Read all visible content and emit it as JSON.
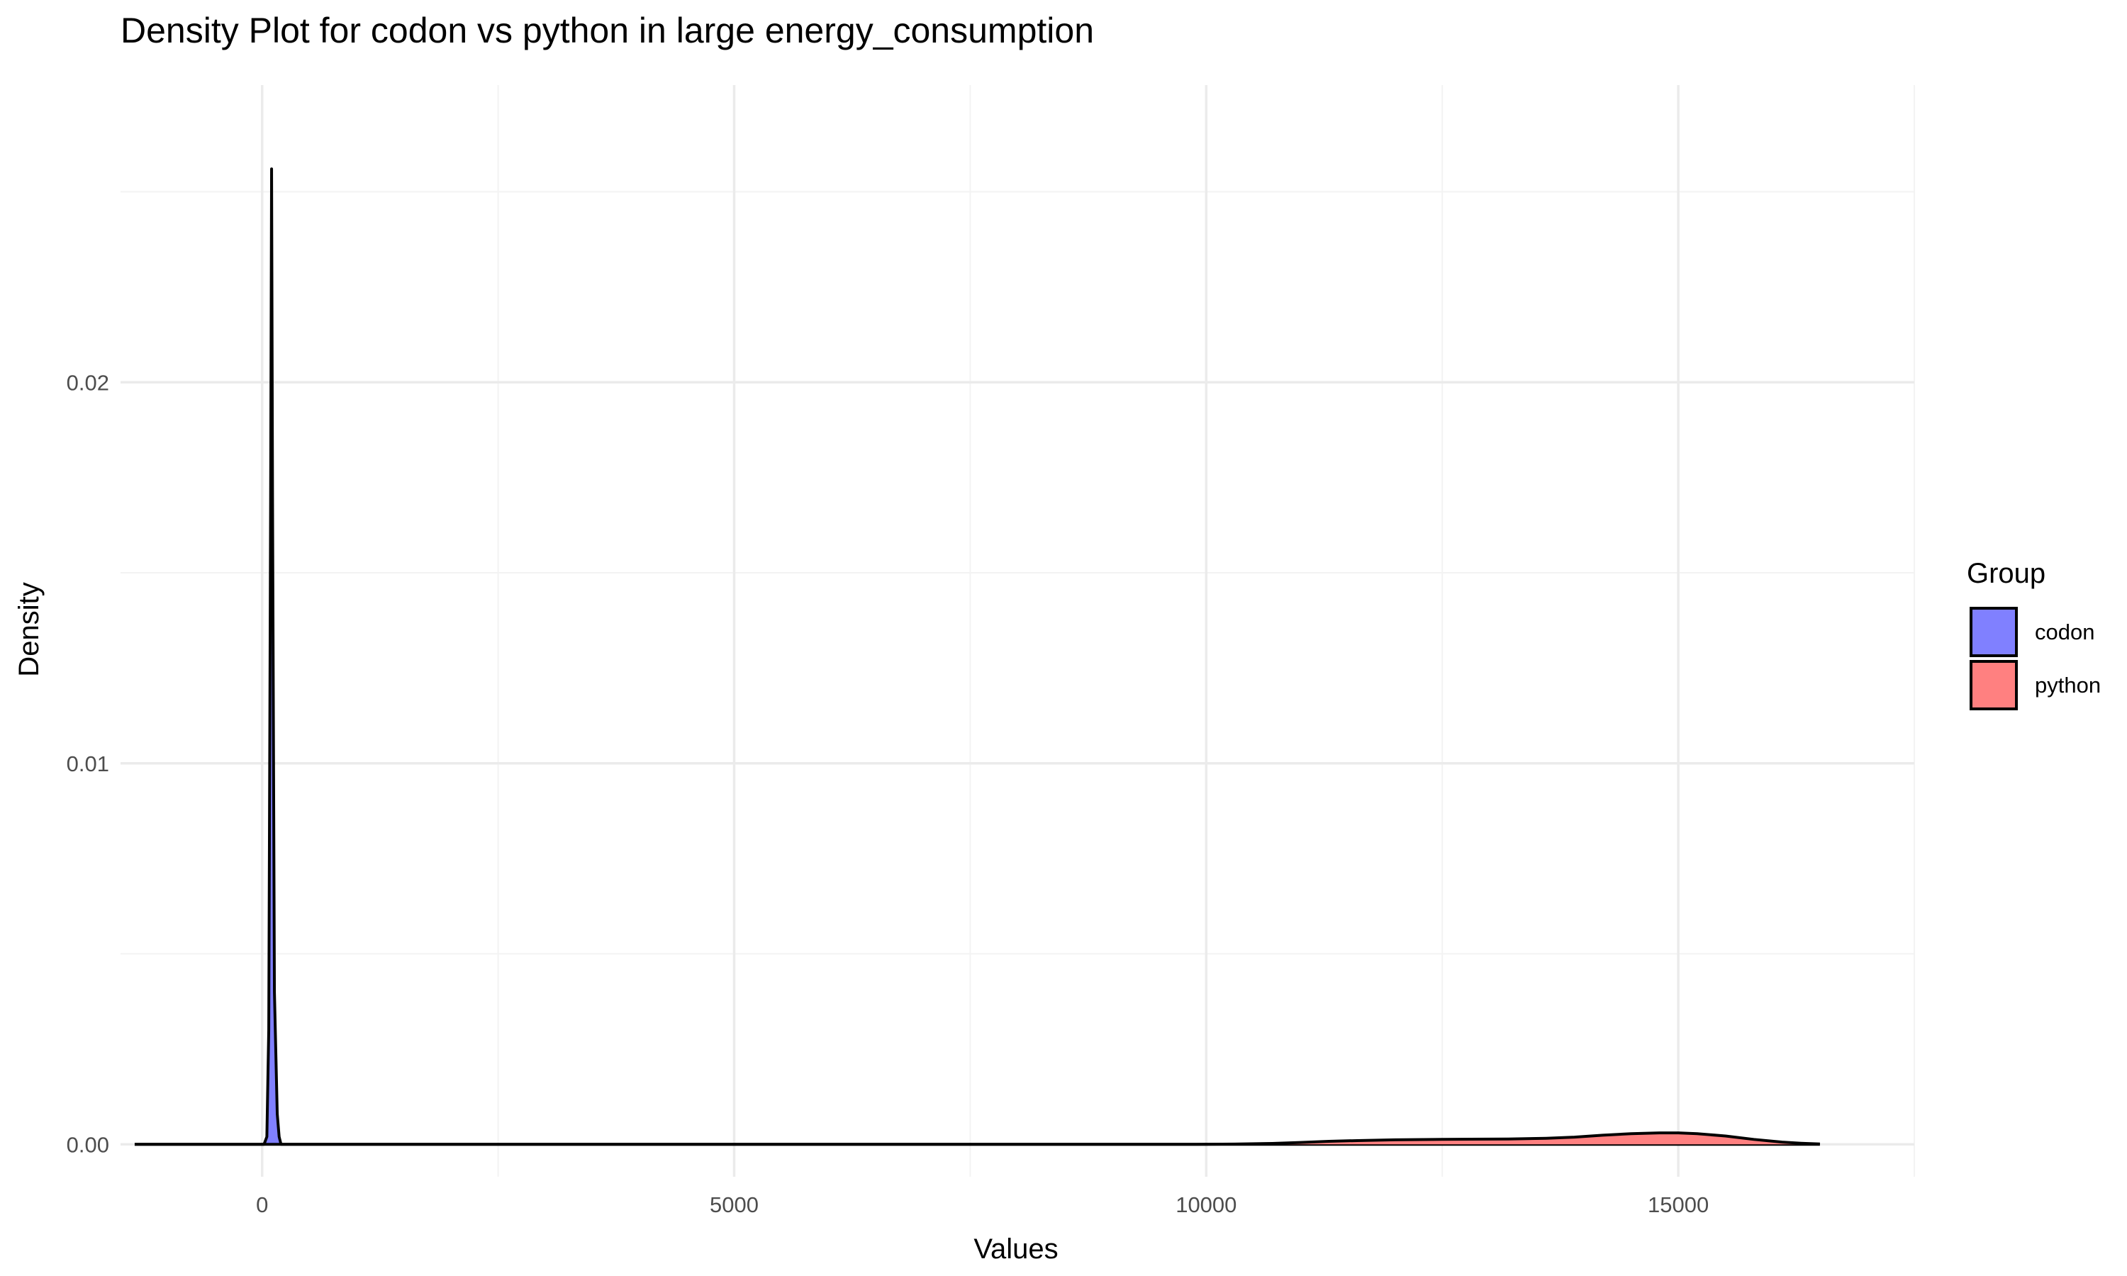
{
  "chart_data": {
    "type": "area",
    "title": "Density Plot for codon vs python in large energy_consumption",
    "xlabel": "Values",
    "ylabel": "Density",
    "xlim": [
      -1500,
      17500
    ],
    "ylim": [
      -0.00085,
      0.0278
    ],
    "x_ticks": [
      0,
      5000,
      10000,
      15000
    ],
    "x_tick_labels": [
      "0",
      "5000",
      "10000",
      "15000"
    ],
    "y_ticks": [
      0.0,
      0.01,
      0.02
    ],
    "y_tick_labels": [
      "0.00",
      "0.01",
      "0.02"
    ],
    "grid": true,
    "legend": {
      "title": "Group",
      "position": "right",
      "entries": [
        {
          "label": "codon",
          "color": "#8080ff"
        },
        {
          "label": "python",
          "color": "#ff8080"
        }
      ]
    },
    "series": [
      {
        "name": "codon",
        "color": "#8080ff",
        "x": [
          -1350,
          0,
          20,
          50,
          70,
          90,
          100,
          110,
          130,
          160,
          180,
          200,
          250,
          1000,
          5000,
          10000,
          16500
        ],
        "y": [
          0,
          0,
          0,
          0.0002,
          0.003,
          0.017,
          0.0256,
          0.017,
          0.004,
          0.0008,
          0.0002,
          0,
          0,
          0,
          0,
          0,
          0
        ]
      },
      {
        "name": "python",
        "color": "#ff8080",
        "x": [
          -1350,
          0,
          5000,
          9900,
          10300,
          10700,
          11000,
          11300,
          11600,
          12000,
          12400,
          12800,
          13200,
          13600,
          13900,
          14200,
          14500,
          14800,
          15000,
          15200,
          15500,
          15800,
          16100,
          16300,
          16500
        ],
        "y": [
          0,
          0,
          0,
          0,
          8e-06,
          2.5e-05,
          5e-05,
          8e-05,
          0.0001,
          0.00012,
          0.00013,
          0.000135,
          0.00014,
          0.00016,
          0.00019,
          0.00024,
          0.00028,
          0.0003,
          0.0003,
          0.00028,
          0.00022,
          0.00013,
          6e-05,
          3e-05,
          1e-05
        ]
      }
    ]
  }
}
